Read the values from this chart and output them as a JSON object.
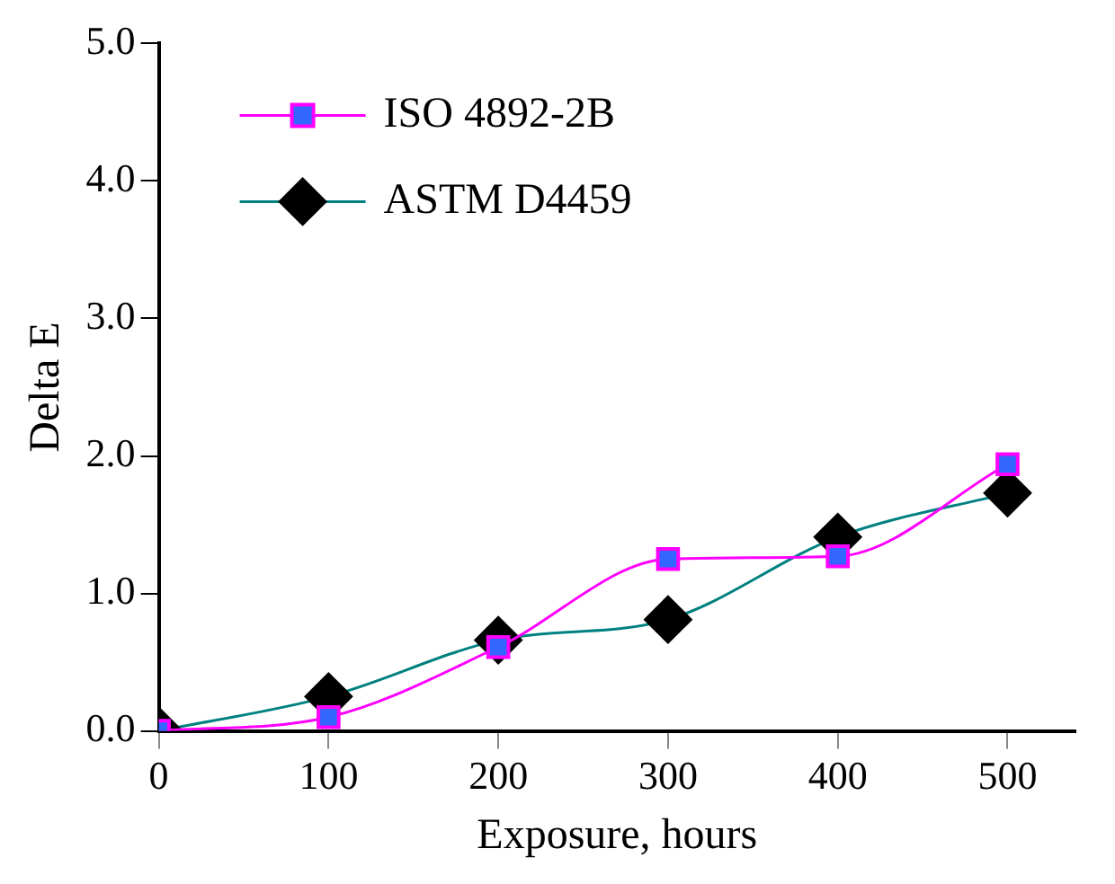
{
  "chart_data": {
    "type": "line",
    "xlabel": "Exposure, hours",
    "ylabel": "Delta E",
    "x": [
      0,
      100,
      200,
      300,
      400,
      500
    ],
    "series": [
      {
        "name": "ISO 4892-2B",
        "color": "#ff00ff",
        "colors": [
          "#3366ff",
          "#3366ff",
          "#3366ff",
          "#3366ff",
          "#3366ff",
          "#3366ff"
        ],
        "marker": "square",
        "values": [
          0,
          0.1,
          0.61,
          1.25,
          1.27,
          1.94
        ]
      },
      {
        "name": "ASTM D4459",
        "color": "#008080",
        "colors": [
          "#000000",
          "#000000",
          "#000000",
          "#000000",
          "#000000",
          "#000000"
        ],
        "marker": "diamond",
        "values": [
          0,
          0.25,
          0.66,
          0.81,
          1.41,
          1.73
        ]
      }
    ],
    "xlim": [
      0,
      540
    ],
    "xticks": [
      0,
      100,
      200,
      300,
      400,
      500
    ],
    "ylim": [
      0,
      5
    ],
    "yticks": [
      {
        "value": 0,
        "label": "0.0"
      },
      {
        "value": 1,
        "label": "1.0"
      },
      {
        "value": 2,
        "label": "2.0"
      },
      {
        "value": 3,
        "label": "3.0"
      },
      {
        "value": 4,
        "label": "4.0"
      },
      {
        "value": 5,
        "label": "5.0"
      }
    ],
    "grid": false,
    "legend": "top left"
  }
}
